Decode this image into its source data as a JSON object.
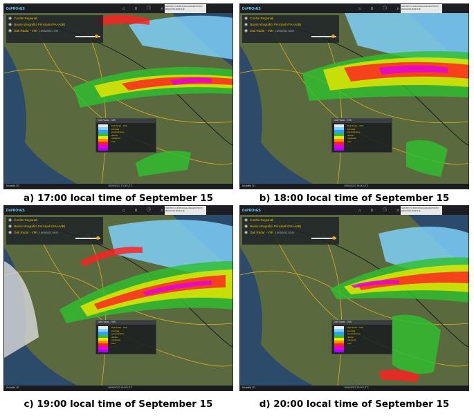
{
  "panels": [
    {
      "caption": "a) 17:00 local time of September 15",
      "brand": "DePROvES",
      "center_title": "CENTRO FUNZIONALE DECENTRATO REGIONE MARCHE",
      "layers": [
        {
          "name": "Confini Regionali",
          "sub": ""
        },
        {
          "name": "Bacini Idrografici Principali (PAI-AdB)",
          "sub": ""
        },
        {
          "name": "Dati Radar - VMI",
          "sub": "15/09/2022 17:00"
        }
      ],
      "slider_fraction": 0.82,
      "legend_header": "Dati Radar - VMI",
      "legend_items": [
        "Dati Radar - VMI",
        "intensità",
        "precipitazione",
        "debole",
        "moderata",
        "forte"
      ],
      "bottom_left": "Modalità 2D",
      "bottom_right": "15/09/2022 17:00 UTC"
    },
    {
      "caption": "b) 18:00 local time of September 15",
      "brand": "DePROvES",
      "center_title": "CENTRO FUNZIONALE DECENTRATO REGIONE MARCHE",
      "layers": [
        {
          "name": "Confini Regionali",
          "sub": ""
        },
        {
          "name": "Bacini Idrografici Principali (PAI-AdB)",
          "sub": ""
        },
        {
          "name": "Dati Radar - VMI",
          "sub": "15/09/2022 18:00"
        }
      ],
      "slider_fraction": 0.85,
      "legend_header": "Dati Radar - VMI",
      "legend_items": [
        "Dati Radar - VMI",
        "intensità",
        "precipitazione",
        "debole",
        "moderata",
        "forte"
      ],
      "bottom_left": "Modalità 2D",
      "bottom_right": "15/09/2022 18:00 UTC"
    },
    {
      "caption": "c) 19:00 local time of September 15",
      "brand": "DePROvES",
      "center_title": "CENTRO FUNZIONALE DECENTRATO REGIONE MARCHE",
      "layers": [
        {
          "name": "Confini Regionali",
          "sub": ""
        },
        {
          "name": "Bacini Idrografici Principali (PAI-AdB)",
          "sub": ""
        },
        {
          "name": "Dati Radar - VMI",
          "sub": "15/09/2022 19:00"
        }
      ],
      "slider_fraction": 0.88,
      "legend_header": "Dati Radar - VMI",
      "legend_items": [
        "Dati Radar - VMI",
        "intensità",
        "precipitazione",
        "debole",
        "moderata",
        "forte"
      ],
      "bottom_left": "Modalità 2D",
      "bottom_right": "15/09/2022 19:00 UTC"
    },
    {
      "caption": "d) 20:00 local time of September 15",
      "brand": "DePROvES",
      "center_title": "CENTRO FUNZIONALE DECENTRATO REGIONE MARCHE",
      "layers": [
        {
          "name": "Confini Regionali",
          "sub": ""
        },
        {
          "name": "Bacini Idrografici Principali (PAI-AdB)",
          "sub": ""
        },
        {
          "name": "Dati Radar - VMI",
          "sub": "15/09/2022 20:00"
        }
      ],
      "slider_fraction": 0.9,
      "legend_header": "Dati Radar - VMI",
      "legend_items": [
        "Dati Radar - VMI",
        "intensità",
        "precipitazione",
        "debole",
        "moderata",
        "forte"
      ],
      "bottom_left": "Modalità 2D",
      "bottom_right": "15/09/2022 20:00 UTC"
    }
  ],
  "toolbar_icons": [
    "home-icon",
    "layers-icon",
    "info-icon",
    "search-icon",
    "draw-icon",
    "measure-icon",
    "settings-icon"
  ],
  "legend_colors": [
    "#e8e8e8",
    "#7fd3ff",
    "#2fa0ff",
    "#30c030",
    "#e8e800",
    "#ff8c00",
    "#ff2020",
    "#e000e0",
    "#b000ff"
  ],
  "colors": {
    "sea": "#2c4a6a",
    "land": "#5b6a3e",
    "border": "#e0b020",
    "region": "#1a1a1a"
  }
}
